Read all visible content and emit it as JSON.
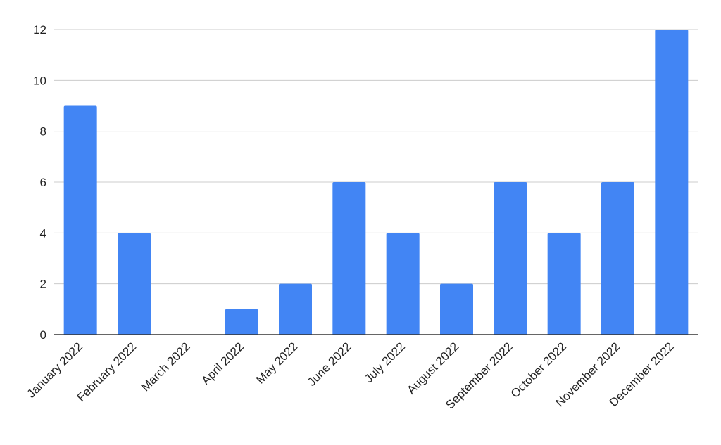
{
  "chart_data": {
    "type": "bar",
    "title": "",
    "xlabel": "",
    "ylabel": "",
    "categories": [
      "January 2022",
      "February 2022",
      "March 2022",
      "April 2022",
      "May 2022",
      "June 2022",
      "July 2022",
      "August 2022",
      "September 2022",
      "October 2022",
      "November 2022",
      "December 2022"
    ],
    "values": [
      9,
      4,
      0,
      1,
      2,
      6,
      4,
      2,
      6,
      4,
      6,
      12
    ],
    "ylim": [
      0,
      12
    ],
    "yticks": [
      0,
      2,
      4,
      6,
      8,
      10,
      12
    ],
    "grid": true,
    "legend": "none",
    "bar_color": "#4285F4"
  }
}
